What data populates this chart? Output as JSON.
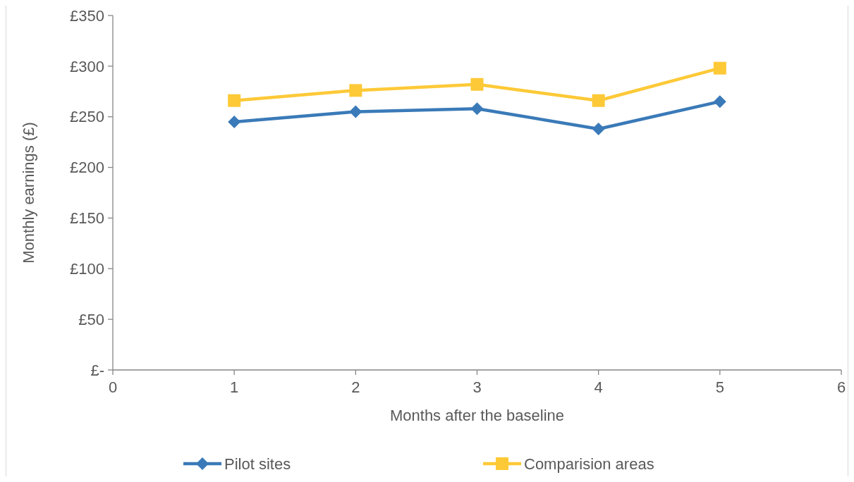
{
  "chart_data": {
    "type": "line",
    "xlabel": "Months after the baseline",
    "ylabel": "Monthly earnings (£)",
    "x": [
      1,
      2,
      3,
      4,
      5
    ],
    "series": [
      {
        "name": "Pilot sites",
        "color": "#3a7ab8",
        "marker": "diamond",
        "values": [
          245,
          255,
          258,
          238,
          265
        ]
      },
      {
        "name": "Comparision areas",
        "color": "#fdc937",
        "marker": "square",
        "values": [
          266,
          276,
          282,
          266,
          298
        ]
      }
    ],
    "xlim": [
      0,
      6
    ],
    "xticks": [
      0,
      1,
      2,
      3,
      4,
      5,
      6
    ],
    "ylim": [
      0,
      350
    ],
    "yticks": [
      {
        "value": 0,
        "label": "£-"
      },
      {
        "value": 50,
        "label": "£50"
      },
      {
        "value": 100,
        "label": "£100"
      },
      {
        "value": 150,
        "label": "£150"
      },
      {
        "value": 200,
        "label": "£200"
      },
      {
        "value": 250,
        "label": "£250"
      },
      {
        "value": 300,
        "label": "£300"
      },
      {
        "value": 350,
        "label": "£350"
      }
    ],
    "grid": false,
    "legend": "bottom",
    "line_style": "solid"
  }
}
